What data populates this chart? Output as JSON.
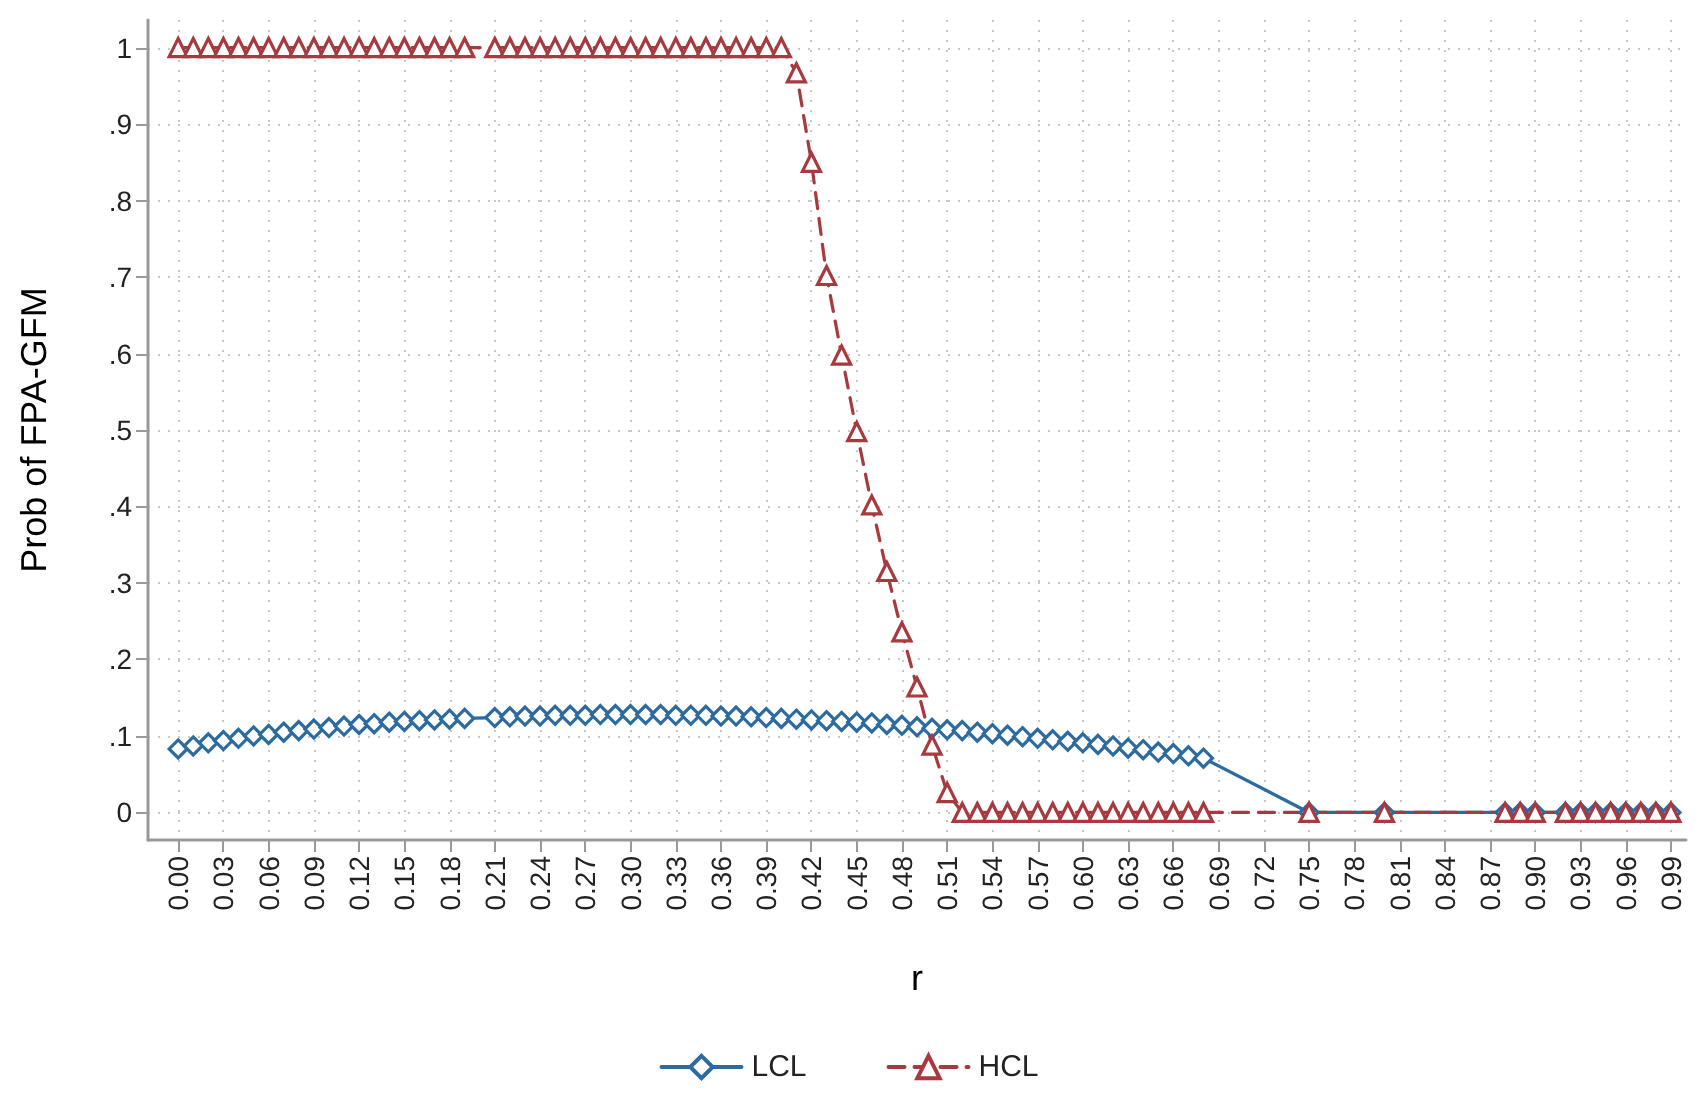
{
  "chart_data": {
    "type": "line",
    "xlabel": "r",
    "ylabel": "Prob of FPA-GFM",
    "x": [
      0,
      0.01,
      0.02,
      0.03,
      0.04,
      0.05,
      0.06,
      0.07,
      0.08,
      0.09,
      0.1,
      0.11,
      0.12,
      0.13,
      0.14,
      0.15,
      0.16,
      0.17,
      0.18,
      0.19,
      0.21,
      0.22,
      0.23,
      0.24,
      0.25,
      0.26,
      0.27,
      0.28,
      0.29,
      0.3,
      0.31,
      0.32,
      0.33,
      0.34,
      0.35,
      0.36,
      0.37,
      0.38,
      0.39,
      0.4,
      0.41,
      0.42,
      0.43,
      0.44,
      0.45,
      0.46,
      0.47,
      0.48,
      0.49,
      0.5,
      0.51,
      0.52,
      0.53,
      0.54,
      0.55,
      0.56,
      0.57,
      0.58,
      0.59,
      0.6,
      0.61,
      0.62,
      0.63,
      0.64,
      0.65,
      0.66,
      0.67,
      0.68,
      0.75,
      0.8,
      0.88,
      0.89,
      0.9,
      0.92,
      0.93,
      0.94,
      0.95,
      0.96,
      0.97,
      0.98,
      0.99
    ],
    "series": [
      {
        "name": "LCL",
        "color": "#2c6b9f",
        "marker": "diamond",
        "line_style": "solid",
        "values": [
          0.083,
          0.087,
          0.091,
          0.094,
          0.097,
          0.1,
          0.102,
          0.105,
          0.107,
          0.109,
          0.111,
          0.113,
          0.115,
          0.116,
          0.118,
          0.119,
          0.12,
          0.121,
          0.122,
          0.123,
          0.124,
          0.125,
          0.126,
          0.126,
          0.127,
          0.127,
          0.127,
          0.128,
          0.128,
          0.128,
          0.128,
          0.128,
          0.127,
          0.127,
          0.127,
          0.126,
          0.126,
          0.125,
          0.124,
          0.123,
          0.122,
          0.121,
          0.12,
          0.119,
          0.118,
          0.117,
          0.115,
          0.114,
          0.112,
          0.11,
          0.108,
          0.107,
          0.105,
          0.103,
          0.101,
          0.099,
          0.097,
          0.095,
          0.093,
          0.091,
          0.089,
          0.087,
          0.084,
          0.082,
          0.079,
          0.077,
          0.074,
          0.071,
          0,
          0,
          0,
          0,
          0,
          0,
          0,
          0,
          0,
          0,
          0,
          0,
          0
        ]
      },
      {
        "name": "HCL",
        "color": "#a63a3f",
        "marker": "triangle",
        "line_style": "dashed",
        "values": [
          1,
          1,
          1,
          1,
          1,
          1,
          1,
          1,
          1,
          1,
          1,
          1,
          1,
          1,
          1,
          1,
          1,
          1,
          1,
          1,
          1,
          1,
          1,
          1,
          1,
          1,
          1,
          1,
          1,
          1,
          1,
          1,
          1,
          1,
          1,
          1,
          1,
          1,
          1,
          1,
          0.967,
          0.85,
          0.702,
          0.598,
          0.498,
          0.402,
          0.315,
          0.236,
          0.164,
          0.088,
          0.026,
          0,
          0,
          0,
          0,
          0,
          0,
          0,
          0,
          0,
          0,
          0,
          0,
          0,
          0,
          0,
          0,
          0,
          0,
          0,
          0,
          0,
          0,
          0,
          0,
          0,
          0,
          0,
          0,
          0,
          0
        ]
      }
    ],
    "xlim": [
      -0.02,
      1.0
    ],
    "xticks": [
      {
        "value": 0,
        "label": "0.00"
      },
      {
        "value": 0.03,
        "label": "0.03"
      },
      {
        "value": 0.06,
        "label": "0.06"
      },
      {
        "value": 0.09,
        "label": "0.09"
      },
      {
        "value": 0.12,
        "label": "0.12"
      },
      {
        "value": 0.15,
        "label": "0.15"
      },
      {
        "value": 0.18,
        "label": "0.18"
      },
      {
        "value": 0.21,
        "label": "0.21"
      },
      {
        "value": 0.24,
        "label": "0.24"
      },
      {
        "value": 0.27,
        "label": "0.27"
      },
      {
        "value": 0.3,
        "label": "0.30"
      },
      {
        "value": 0.33,
        "label": "0.33"
      },
      {
        "value": 0.36,
        "label": "0.36"
      },
      {
        "value": 0.39,
        "label": "0.39"
      },
      {
        "value": 0.42,
        "label": "0.42"
      },
      {
        "value": 0.45,
        "label": "0.45"
      },
      {
        "value": 0.48,
        "label": "0.48"
      },
      {
        "value": 0.51,
        "label": "0.51"
      },
      {
        "value": 0.54,
        "label": "0.54"
      },
      {
        "value": 0.57,
        "label": "0.57"
      },
      {
        "value": 0.6,
        "label": "0.60"
      },
      {
        "value": 0.63,
        "label": "0.63"
      },
      {
        "value": 0.66,
        "label": "0.66"
      },
      {
        "value": 0.69,
        "label": "0.69"
      },
      {
        "value": 0.72,
        "label": "0.72"
      },
      {
        "value": 0.75,
        "label": "0.75"
      },
      {
        "value": 0.78,
        "label": "0.78"
      },
      {
        "value": 0.81,
        "label": "0.81"
      },
      {
        "value": 0.84,
        "label": "0.84"
      },
      {
        "value": 0.87,
        "label": "0.87"
      },
      {
        "value": 0.9,
        "label": "0.90"
      },
      {
        "value": 0.93,
        "label": "0.93"
      },
      {
        "value": 0.96,
        "label": "0.96"
      },
      {
        "value": 0.99,
        "label": "0.99"
      }
    ],
    "ylim": [
      -0.036,
      1.036
    ],
    "yticks": [
      0,
      {
        "value": 0.1,
        "label": ".1"
      },
      {
        "value": 0.2,
        "label": ".2"
      },
      {
        "value": 0.3,
        "label": ".3"
      },
      {
        "value": 0.4,
        "label": ".4"
      },
      {
        "value": 0.5,
        "label": ".5"
      },
      {
        "value": 0.6,
        "label": ".6"
      },
      {
        "value": 0.7,
        "label": ".7"
      },
      {
        "value": 0.8,
        "label": ".8"
      },
      {
        "value": 0.9,
        "label": ".9"
      },
      1
    ],
    "grid": true,
    "legend": "bottom"
  }
}
